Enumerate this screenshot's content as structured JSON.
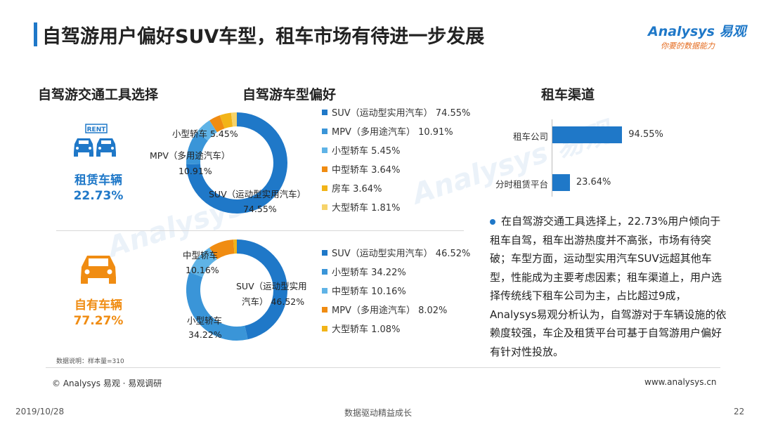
{
  "title": "自驾游用户偏好SUV车型，租车市场有待进一步发展",
  "logo": {
    "main": "Analysys 易观",
    "sub": "你要的数据能力"
  },
  "sections": {
    "transport": "自驾游交通工具选择",
    "vehicle_pref": "自驾游车型偏好",
    "rental_channel": "租车渠道"
  },
  "rent_icon_text": "RENT",
  "rental": {
    "label": "租赁车辆",
    "pct": "22.73%"
  },
  "own": {
    "label": "自有车辆",
    "pct": "77.27%"
  },
  "colors": {
    "blue": "#1f78c8",
    "mid_blue": "#3a95d8",
    "light_blue": "#5fb3e6",
    "orange": "#f08c12",
    "gold": "#f2b418",
    "pale": "#f6d36a"
  },
  "chart_data": [
    {
      "type": "pie",
      "categories": [
        "SUV（运动型实用汽车）",
        "MPV（多用途汽车）",
        "小型轿车",
        "中型轿车",
        "房车",
        "大型轿车"
      ],
      "values": [
        74.55,
        10.91,
        5.45,
        3.64,
        3.64,
        1.81
      ],
      "legend": [
        "SUV（运动型实用汽车） 74.55%",
        "MPV（多用途汽车） 10.91%",
        "小型轿车 5.45%",
        "中型轿车 3.64%",
        "房车 3.64%",
        "大型轿车 1.81%"
      ],
      "colors": [
        "#1f78c8",
        "#3a95d8",
        "#5fb3e6",
        "#f08c12",
        "#f2b418",
        "#f6d36a"
      ],
      "labels": {
        "small": "小型轿车 5.45%",
        "mpv": "MPV（多用途汽车）",
        "mpv_val": "10.91%",
        "suv": "SUV（运动型实用汽车）",
        "suv_val": "74.55%"
      }
    },
    {
      "type": "pie",
      "categories": [
        "SUV（运动型实用汽车）",
        "小型轿车",
        "中型轿车",
        "MPV（多用途汽车）",
        "大型轿车"
      ],
      "values": [
        46.52,
        34.22,
        10.16,
        8.02,
        1.08
      ],
      "legend": [
        "SUV（运动型实用汽车） 46.52%",
        "小型轿车 34.22%",
        "中型轿车 10.16%",
        "MPV（多用途汽车） 8.02%",
        "大型轿车 1.08%"
      ],
      "colors": [
        "#1f78c8",
        "#3a95d8",
        "#5fb3e6",
        "#f08c12",
        "#f2b418"
      ],
      "labels": {
        "mid": "中型轿车",
        "mid_val": "10.16%",
        "suv": "SUV（运动型实用",
        "suv2": "汽车） 46.52%",
        "small": "小型轿车",
        "small_val": "34.22%"
      }
    },
    {
      "type": "bar",
      "categories": [
        "租车公司",
        "分时租赁平台"
      ],
      "values": [
        94.55,
        23.64
      ],
      "value_labels": [
        "94.55%",
        "23.64%"
      ],
      "xlim": [
        0,
        100
      ],
      "color": "#1f78c8"
    }
  ],
  "summary": "在自驾游交通工具选择上，22.73%用户倾向于租车自驾，租车出游热度并不高张，市场有待突破；车型方面，运动型实用汽车SUV远超其他车型，性能成为主要考虑因素；租车渠道上，用户选择传统线下租车公司为主，占比超过9成，Analysys易观分析认为，自驾游对于车辆设施的依赖度较强，车企及租赁平台可基于自驾游用户偏好有针对性投放。",
  "data_note": "数据说明：样本量=310",
  "footer": {
    "copyright": "© Analysys 易观 · 易观调研",
    "url": "www.analysys.cn",
    "date": "2019/10/28",
    "slogan": "数据驱动精益成长",
    "page": "22"
  }
}
